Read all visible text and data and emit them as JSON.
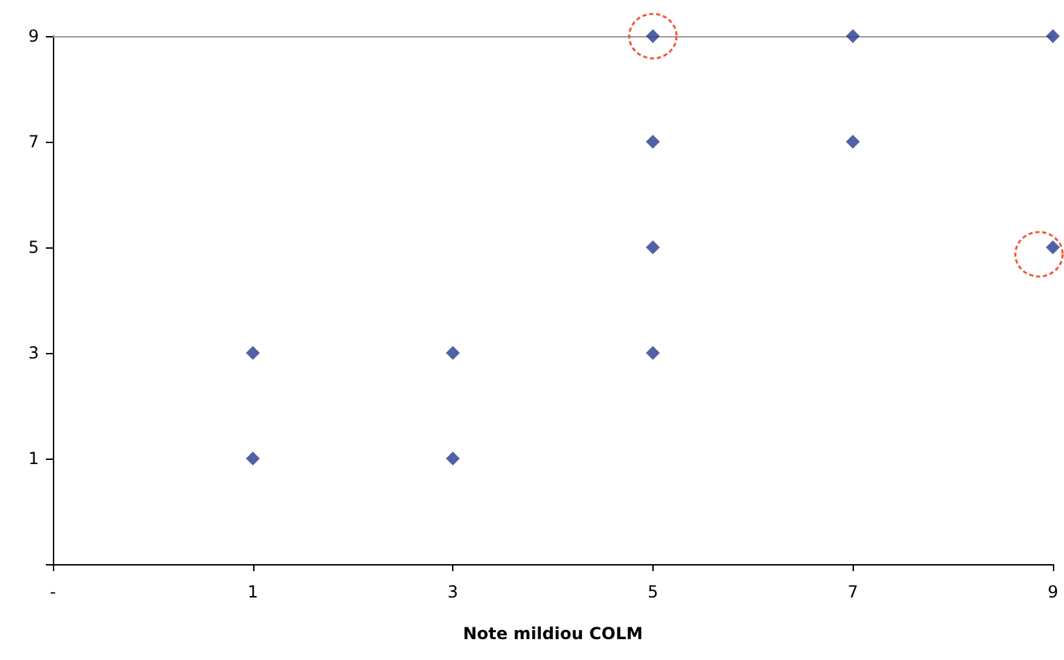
{
  "chart_data": {
    "type": "scatter",
    "xlabel": "Note mildiou COLM",
    "categories": [
      "-",
      "1",
      "3",
      "5",
      "7",
      "9"
    ],
    "series": [
      {
        "color": "#253a8e",
        "x": [
          "1",
          "1",
          "3",
          "3",
          "5",
          "5",
          "5",
          "5",
          "7",
          "7",
          "9",
          "9"
        ],
        "values": [
          1,
          3,
          1,
          3,
          3,
          5,
          7,
          9,
          7,
          9,
          5,
          9
        ]
      }
    ],
    "ylim": [
      -1,
      9
    ],
    "yticks": [
      {
        "value": -1,
        "label": null
      },
      1,
      3,
      5,
      7,
      9
    ],
    "marker": "diamond",
    "grid": false
  }
}
